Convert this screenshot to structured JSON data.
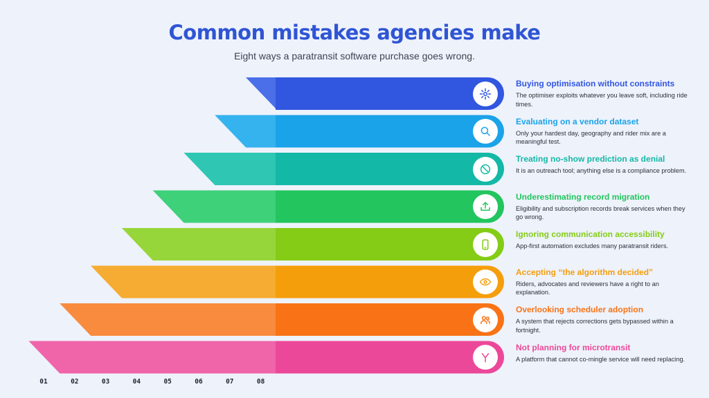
{
  "header": {
    "title": "Common mistakes agencies make",
    "subtitle": "Eight ways a paratransit software purchase goes wrong."
  },
  "axis_labels": [
    "01",
    "02",
    "03",
    "04",
    "05",
    "06",
    "07",
    "08"
  ],
  "items": [
    {
      "title": "Buying optimisation without constraints",
      "description": "The optimiser exploits whatever you leave soft, including ride times.",
      "color": "#3156e0",
      "light": "#4a6fe8",
      "icon": "sparkle-icon"
    },
    {
      "title": "Evaluating on a vendor dataset",
      "description": "Only your hardest day, geography and rider mix are a meaningful test.",
      "color": "#1aa3e8",
      "light": "#35b3ee",
      "icon": "search-icon"
    },
    {
      "title": "Treating no-show prediction as denial",
      "description": "It is an outreach tool; anything else is a compliance problem.",
      "color": "#14b8a6",
      "light": "#2fc6b4",
      "icon": "block-icon"
    },
    {
      "title": "Underestimating record migration",
      "description": "Eligibility and subscription records break services when they go wrong.",
      "color": "#22c55e",
      "light": "#3fd07a",
      "icon": "upload-icon"
    },
    {
      "title": "Ignoring communication accessibility",
      "description": "App-first automation excludes many paratransit riders.",
      "color": "#84cc16",
      "light": "#97d63a",
      "icon": "phone-icon"
    },
    {
      "title": "Accepting “the algorithm decided”",
      "description": "Riders, advocates and reviewers have a right to an explanation.",
      "color": "#f59e0b",
      "light": "#f6ac32",
      "icon": "eye-icon"
    },
    {
      "title": "Overlooking scheduler adoption",
      "description": "A system that rejects corrections gets bypassed within a fortnight.",
      "color": "#f97316",
      "light": "#f98b3e",
      "icon": "users-icon"
    },
    {
      "title": "Not planning for microtransit",
      "description": "A platform that cannot co-mingle service will need replacing.",
      "color": "#ec4899",
      "light": "#f065aa",
      "icon": "merge-icon"
    }
  ]
}
